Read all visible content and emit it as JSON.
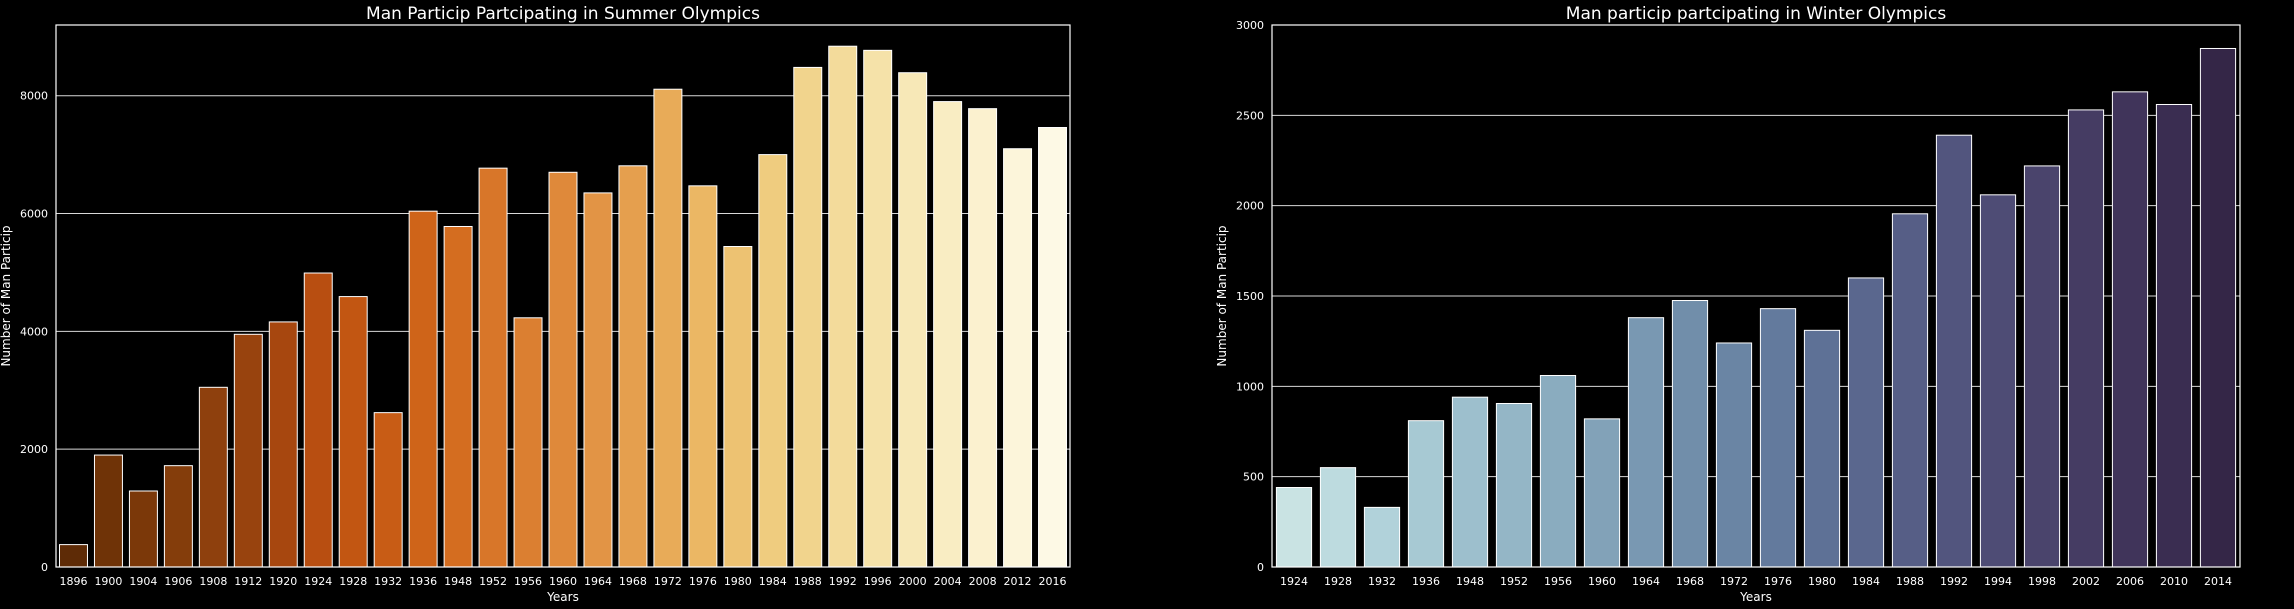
{
  "chart_data": [
    {
      "type": "bar",
      "title": "Man Particip Partcipating in Summer Olympics",
      "xlabel": "Years",
      "ylabel": "Number of Man Particip",
      "ylim": [
        0,
        9200
      ],
      "yticks": [
        0,
        2000,
        4000,
        6000,
        8000
      ],
      "grid": true,
      "palette": "YlOrBr (dark to light)",
      "categories": [
        "1896",
        "1900",
        "1904",
        "1906",
        "1908",
        "1912",
        "1920",
        "1924",
        "1928",
        "1932",
        "1936",
        "1948",
        "1952",
        "1956",
        "1960",
        "1964",
        "1968",
        "1972",
        "1976",
        "1980",
        "1984",
        "1988",
        "1992",
        "1996",
        "2000",
        "2004",
        "2008",
        "2012",
        "2016"
      ],
      "values": [
        380,
        1900,
        1290,
        1720,
        3050,
        3950,
        4160,
        4990,
        4590,
        2620,
        6040,
        5780,
        6770,
        4230,
        6700,
        6350,
        6810,
        8110,
        6470,
        5440,
        7000,
        8480,
        8840,
        8770,
        8390,
        7900,
        7780,
        7100,
        7460
      ],
      "colors": [
        "#5e2b06",
        "#6f3307",
        "#7b3809",
        "#843d0b",
        "#8e400d",
        "#98430e",
        "#a7470f",
        "#b84e11",
        "#c25612",
        "#c85c15",
        "#cf6419",
        "#d46d20",
        "#d87629",
        "#db7f31",
        "#df893a",
        "#e29445",
        "#e59f4e",
        "#e8ab58",
        "#ebb764",
        "#edc272",
        "#efcc7f",
        "#f1d48d",
        "#f3db9b",
        "#f5e2a9",
        "#f7e8b7",
        "#f9edc3",
        "#fbf1cf",
        "#fcf5da",
        "#fdf9e5"
      ]
    },
    {
      "type": "bar",
      "title": "Man particip partcipating in Winter Olympics",
      "xlabel": "Years",
      "ylabel": "Number of Man Particip",
      "ylim": [
        0,
        3000
      ],
      "yticks": [
        0,
        500,
        1000,
        1500,
        2000,
        2500,
        3000
      ],
      "grid": true,
      "palette": "ch:start=.2,rot=-.3 (light to dark)",
      "categories": [
        "1924",
        "1928",
        "1932",
        "1936",
        "1948",
        "1952",
        "1956",
        "1960",
        "1964",
        "1968",
        "1972",
        "1976",
        "1980",
        "1984",
        "1988",
        "1992",
        "1994",
        "1998",
        "2002",
        "2006",
        "2010",
        "2014"
      ],
      "values": [
        440,
        550,
        330,
        810,
        940,
        905,
        1060,
        820,
        1380,
        1475,
        1240,
        1430,
        1310,
        1600,
        1955,
        2390,
        2060,
        2220,
        2530,
        2630,
        2560,
        2870
      ],
      "colors": [
        "#c9e3e3",
        "#bddbdf",
        "#b1d2da",
        "#a7c9d3",
        "#9dbfcd",
        "#94b6c6",
        "#8aacbf",
        "#82a2b8",
        "#7998b2",
        "#718eaa",
        "#6a85a4",
        "#637a9d",
        "#5e7196",
        "#5a678e",
        "#565e86",
        "#52557e",
        "#4e4c75",
        "#4a446c",
        "#453c63",
        "#40345a",
        "#3a2d51",
        "#342647"
      ]
    }
  ]
}
